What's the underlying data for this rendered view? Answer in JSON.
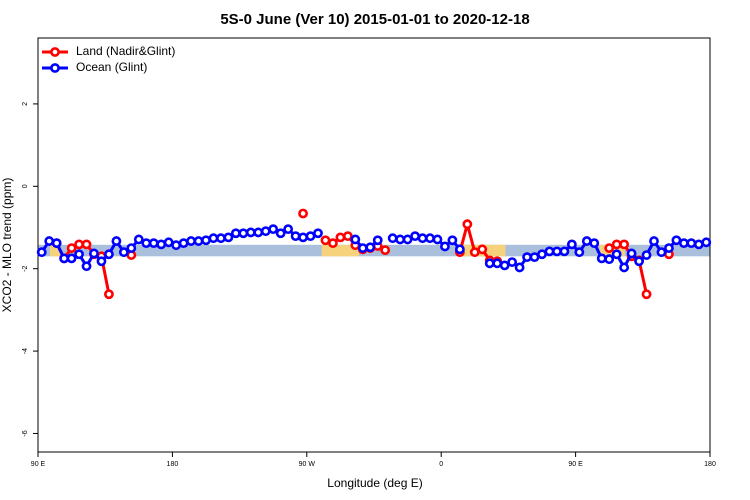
{
  "chart_data": {
    "type": "line",
    "title": "5S-0 June (Ver 10)   2015-01-01 to 2020-12-18",
    "x_label": "Longitude (deg E)",
    "y_label": "XCO2 - MLO trend (ppm)",
    "xlim": [
      90,
      540
    ],
    "ylim": [
      -6.45,
      3.6
    ],
    "xticks": [
      {
        "value": 90,
        "label": "90 E"
      },
      180,
      {
        "value": 270,
        "label": "90 W"
      },
      {
        "value": 360,
        "label": "0"
      },
      {
        "value": 450,
        "label": "90 E"
      },
      {
        "value": 540,
        "label": "180"
      }
    ],
    "yticks": [
      -6,
      -4,
      -2,
      0,
      2
    ],
    "legend": "top-left",
    "background_bands": [
      {
        "xlim": [
          90,
          540
        ],
        "ylim": [
          -1.7,
          -1.42
        ],
        "color": "#a9bfdc"
      },
      {
        "xlim": [
          98,
          105
        ],
        "ylim": [
          -1.7,
          -1.42
        ],
        "color": "#f6d27c"
      },
      {
        "xlim": [
          280,
          305
        ],
        "ylim": [
          -1.7,
          -1.42
        ],
        "color": "#f6d27c"
      },
      {
        "xlim": [
          372,
          403
        ],
        "ylim": [
          -1.7,
          -1.42
        ],
        "color": "#f6d27c"
      },
      {
        "xlim": [
          466,
          483
        ],
        "ylim": [
          -1.7,
          -1.42
        ],
        "color": "#f6d27c"
      }
    ],
    "x": [
      92.5,
      97.5,
      102.5,
      107.5,
      112.5,
      117.5,
      122.5,
      127.5,
      132.5,
      137.5,
      142.5,
      147.5,
      152.5,
      157.5,
      162.5,
      167.5,
      172.5,
      177.5,
      182.5,
      187.5,
      192.5,
      197.5,
      202.5,
      207.5,
      212.5,
      217.5,
      222.5,
      227.5,
      232.5,
      237.5,
      242.5,
      247.5,
      252.5,
      257.5,
      262.5,
      267.5,
      272.5,
      277.5,
      282.5,
      287.5,
      292.5,
      297.5,
      302.5,
      307.5,
      312.5,
      317.5,
      322.5,
      327.5,
      332.5,
      337.5,
      342.5,
      347.5,
      352.5,
      357.5,
      362.5,
      367.5,
      372.5,
      377.5,
      382.5,
      387.5,
      392.5,
      397.5,
      402.5,
      407.5,
      412.5,
      417.5,
      422.5,
      427.5,
      432.5,
      437.5,
      442.5,
      447.5,
      452.5,
      457.5,
      462.5,
      467.5,
      472.5,
      477.5,
      482.5,
      487.5,
      492.5,
      497.5,
      502.5,
      507.5,
      512.5,
      517.5,
      522.5,
      527.5,
      532.5,
      537.5
    ],
    "series": [
      {
        "name": "Land (Nadir&Glint)",
        "color": "#ff0000",
        "values": [
          null,
          null,
          -1.38,
          -1.75,
          -1.5,
          -1.41,
          -1.41,
          -1.65,
          -1.7,
          -2.62,
          null,
          null,
          -1.67,
          null,
          null,
          null,
          null,
          null,
          null,
          null,
          null,
          null,
          null,
          null,
          null,
          null,
          null,
          null,
          null,
          null,
          null,
          null,
          null,
          null,
          null,
          -0.66,
          null,
          null,
          -1.31,
          -1.38,
          -1.24,
          -1.21,
          -1.43,
          -1.53,
          -1.5,
          -1.45,
          -1.55,
          null,
          null,
          null,
          null,
          null,
          null,
          null,
          null,
          null,
          -1.6,
          -0.92,
          -1.6,
          -1.53,
          -1.8,
          -1.82,
          null,
          null,
          null,
          null,
          null,
          null,
          null,
          null,
          null,
          null,
          null,
          null,
          null,
          null,
          -1.5,
          -1.41,
          -1.41,
          -1.7,
          -1.8,
          -2.62,
          null,
          null,
          -1.65,
          null,
          null,
          null,
          null,
          null
        ]
      },
      {
        "name": "Ocean (Glint)",
        "color": "#0000ff",
        "values": [
          -1.6,
          -1.33,
          -1.38,
          -1.75,
          -1.75,
          -1.65,
          -1.94,
          -1.63,
          -1.82,
          -1.65,
          -1.33,
          -1.6,
          -1.5,
          -1.29,
          -1.38,
          -1.38,
          -1.41,
          -1.36,
          -1.43,
          -1.38,
          -1.33,
          -1.33,
          -1.31,
          -1.26,
          -1.26,
          -1.24,
          -1.14,
          -1.14,
          -1.12,
          -1.12,
          -1.09,
          -1.04,
          -1.14,
          -1.04,
          -1.21,
          -1.24,
          -1.21,
          -1.14,
          null,
          null,
          null,
          null,
          -1.29,
          -1.5,
          -1.48,
          -1.31,
          null,
          -1.26,
          -1.29,
          -1.29,
          -1.21,
          -1.26,
          -1.26,
          -1.29,
          -1.46,
          -1.31,
          -1.53,
          null,
          null,
          null,
          -1.87,
          -1.87,
          -1.92,
          -1.84,
          -1.97,
          -1.72,
          -1.72,
          -1.65,
          -1.58,
          -1.58,
          -1.58,
          -1.41,
          -1.6,
          -1.33,
          -1.38,
          -1.75,
          -1.77,
          -1.65,
          -1.97,
          -1.63,
          -1.82,
          -1.67,
          -1.33,
          -1.6,
          -1.5,
          -1.31,
          -1.38,
          -1.38,
          -1.41,
          -1.36
        ]
      }
    ]
  }
}
